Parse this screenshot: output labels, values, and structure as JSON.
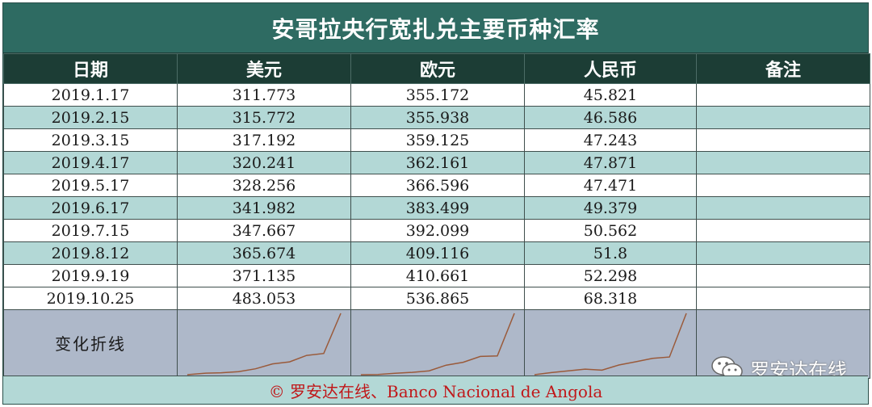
{
  "title": "安哥拉央行宽扎兑主要币种汇率",
  "headers": [
    "日期",
    "美元",
    "欧元",
    "人民币",
    "备注"
  ],
  "rows": [
    {
      "date": "2019.1.17",
      "usd": "311.773",
      "eur": "355.172",
      "cny": "45.821",
      "note": ""
    },
    {
      "date": "2019.2.15",
      "usd": "315.772",
      "eur": "355.938",
      "cny": "46.586",
      "note": ""
    },
    {
      "date": "2019.3.15",
      "usd": "317.192",
      "eur": "359.125",
      "cny": "47.243",
      "note": ""
    },
    {
      "date": "2019.4.17",
      "usd": "320.241",
      "eur": "362.161",
      "cny": "47.871",
      "note": ""
    },
    {
      "date": "2019.5.17",
      "usd": "328.256",
      "eur": "366.596",
      "cny": "47.471",
      "note": ""
    },
    {
      "date": "2019.6.17",
      "usd": "341.982",
      "eur": "383.499",
      "cny": "49.379",
      "note": ""
    },
    {
      "date": "2019.7.15",
      "usd": "347.667",
      "eur": "392.099",
      "cny": "50.562",
      "note": ""
    },
    {
      "date": "2019.8.12",
      "usd": "365.674",
      "eur": "409.116",
      "cny": "51.8",
      "note": ""
    },
    {
      "date": "2019.9.19",
      "usd": "371.135",
      "eur": "410.661",
      "cny": "52.298",
      "note": ""
    },
    {
      "date": "2019.10.25",
      "usd": "483.053",
      "eur": "536.865",
      "cny": "68.318",
      "note": ""
    }
  ],
  "sparkline_label": "变化折线",
  "spark_color": "#9a5a3a",
  "watermark": {
    "icon": "wechat-icon",
    "text": "罗安达在线"
  },
  "footer": "© 罗安达在线、Banco Nacional de Angola",
  "colors": {
    "title_bg": "#2e6b62",
    "header_bg": "#1c3d35",
    "row_alt": "#b3d8d6",
    "spark_bg": "#aeb8c9",
    "footer_text": "#c0181a"
  }
}
